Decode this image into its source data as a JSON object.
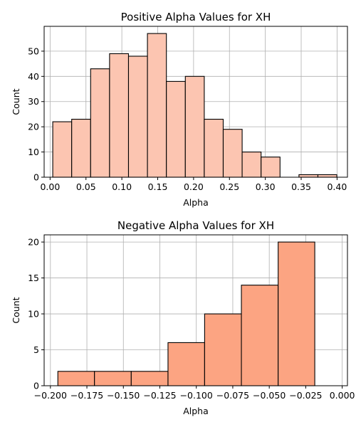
{
  "colors": {
    "background": "#ffffff",
    "grid": "#b0b0b0",
    "edge": "#000000"
  },
  "chart_data": [
    {
      "type": "bar",
      "subtype": "histogram",
      "title": "Positive Alpha Values for XH",
      "xlabel": "Alpha",
      "ylabel": "Count",
      "bar_color": "#fcc5b1",
      "xlim": [
        -0.0083,
        0.4145
      ],
      "ylim": [
        0,
        59.85
      ],
      "xticks": [
        0.0,
        0.05,
        0.1,
        0.15,
        0.2,
        0.25,
        0.3,
        0.35,
        0.4
      ],
      "xtick_labels": [
        "0.00",
        "0.05",
        "0.10",
        "0.15",
        "0.20",
        "0.25",
        "0.30",
        "0.35",
        "0.40"
      ],
      "yticks": [
        0,
        10,
        20,
        30,
        40,
        50
      ],
      "ytick_labels": [
        "0",
        "10",
        "20",
        "30",
        "40",
        "50"
      ],
      "grid": true,
      "bins": [
        {
          "x0": 0.0037,
          "x1": 0.0301,
          "count": 22
        },
        {
          "x0": 0.0301,
          "x1": 0.0565,
          "count": 23
        },
        {
          "x0": 0.0565,
          "x1": 0.0829,
          "count": 43
        },
        {
          "x0": 0.0829,
          "x1": 0.1093,
          "count": 49
        },
        {
          "x0": 0.1093,
          "x1": 0.1357,
          "count": 48
        },
        {
          "x0": 0.1357,
          "x1": 0.1621,
          "count": 57
        },
        {
          "x0": 0.1621,
          "x1": 0.1885,
          "count": 38
        },
        {
          "x0": 0.1885,
          "x1": 0.2149,
          "count": 40
        },
        {
          "x0": 0.2149,
          "x1": 0.2413,
          "count": 23
        },
        {
          "x0": 0.2413,
          "x1": 0.2677,
          "count": 19
        },
        {
          "x0": 0.2677,
          "x1": 0.2941,
          "count": 10
        },
        {
          "x0": 0.2941,
          "x1": 0.3205,
          "count": 8
        },
        {
          "x0": 0.3205,
          "x1": 0.3469,
          "count": 0
        },
        {
          "x0": 0.3469,
          "x1": 0.3733,
          "count": 1
        },
        {
          "x0": 0.3733,
          "x1": 0.3997,
          "count": 1
        }
      ]
    },
    {
      "type": "bar",
      "subtype": "histogram",
      "title": "Negative Alpha Values for XH",
      "xlabel": "Alpha",
      "ylabel": "Count",
      "bar_color": "#fca482",
      "xlim": [
        -0.2043,
        0.0036
      ],
      "ylim": [
        0,
        21
      ],
      "xticks": [
        -0.2,
        -0.175,
        -0.15,
        -0.125,
        -0.1,
        -0.075,
        -0.05,
        -0.025,
        0.0
      ],
      "xtick_labels": [
        "−0.200",
        "−0.175",
        "−0.150",
        "−0.125",
        "−0.100",
        "−0.075",
        "−0.050",
        "−0.025",
        "0.000"
      ],
      "yticks": [
        0,
        5,
        10,
        15,
        20
      ],
      "ytick_labels": [
        "0",
        "5",
        "10",
        "15",
        "20"
      ],
      "grid": true,
      "bins": [
        {
          "x0": -0.1949,
          "x1": -0.1698,
          "count": 2
        },
        {
          "x0": -0.1698,
          "x1": -0.1446,
          "count": 2
        },
        {
          "x0": -0.1446,
          "x1": -0.1194,
          "count": 2
        },
        {
          "x0": -0.1194,
          "x1": -0.0943,
          "count": 6
        },
        {
          "x0": -0.0943,
          "x1": -0.0691,
          "count": 10
        },
        {
          "x0": -0.0691,
          "x1": -0.0439,
          "count": 14
        },
        {
          "x0": -0.0439,
          "x1": -0.0188,
          "count": 20
        },
        {
          "x0": -0.0188,
          "x1": -0.0188,
          "count": 0
        }
      ]
    }
  ]
}
